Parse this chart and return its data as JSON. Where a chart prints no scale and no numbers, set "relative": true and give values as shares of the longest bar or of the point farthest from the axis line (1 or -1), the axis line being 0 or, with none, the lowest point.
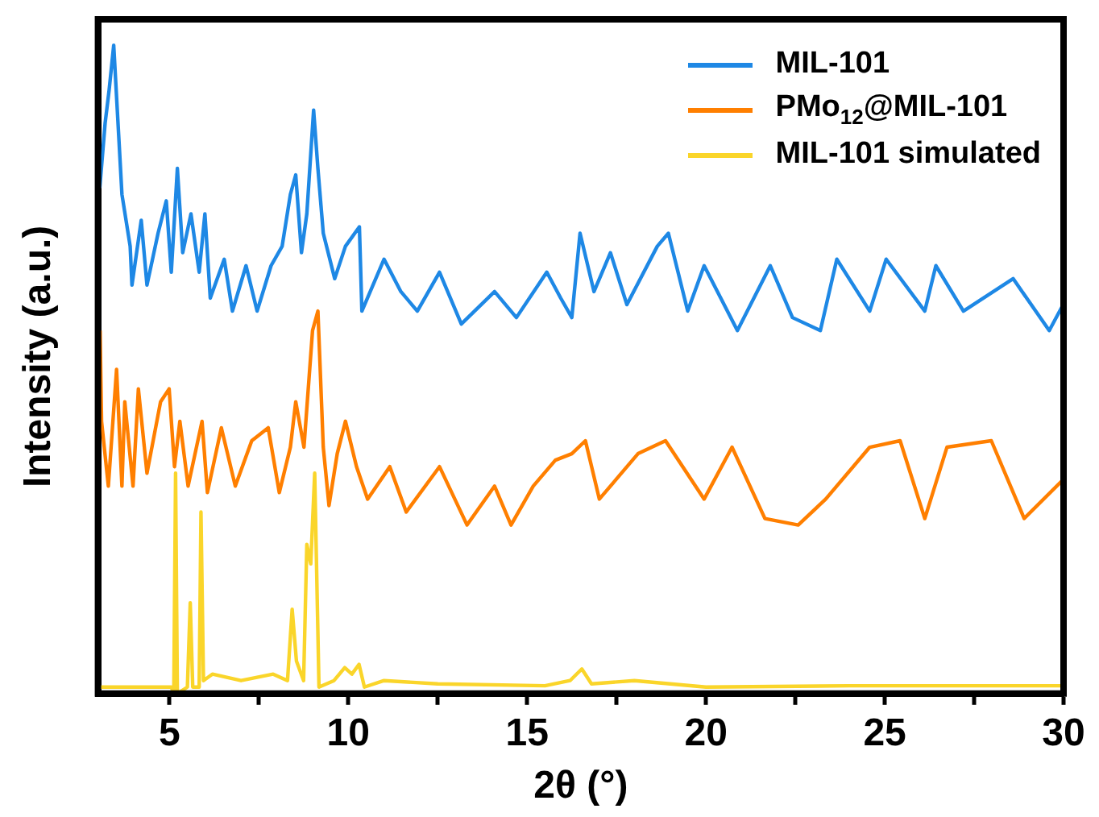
{
  "chart_data": {
    "type": "line",
    "xlabel": "2θ (°)",
    "ylabel": "Intensity (a.u.)",
    "relative": true,
    "xlim": [
      3,
      30
    ],
    "xticks": [
      5,
      {
        "value": 7.5,
        "label": null
      },
      10,
      {
        "value": 12.5,
        "label": null
      },
      15,
      {
        "value": 17.5,
        "label": null
      },
      20,
      {
        "value": 22.5,
        "label": null
      },
      25,
      {
        "value": 27.5,
        "label": null
      },
      30
    ],
    "legend": "top right",
    "grid": false,
    "marker": "none",
    "line_style": "solid",
    "tick_labels": "x",
    "series": [
      {
        "name": "MIL-101",
        "color": "#1e88e5",
        "x": [
          3.05,
          3.2,
          3.31,
          3.44,
          3.56,
          3.67,
          3.9,
          3.95,
          4.21,
          4.37,
          4.68,
          4.91,
          5.05,
          5.22,
          5.37,
          5.6,
          5.83,
          5.99,
          6.14,
          6.53,
          6.76,
          7.14,
          7.45,
          7.84,
          8.15,
          8.38,
          8.53,
          8.69,
          8.84,
          9.03,
          9.15,
          9.3,
          9.62,
          9.92,
          10.31,
          10.38,
          11.0,
          11.47,
          11.93,
          12.55,
          13.16,
          14.09,
          14.7,
          15.55,
          15.94,
          16.25,
          16.48,
          16.87,
          17.33,
          17.79,
          18.64,
          18.95,
          19.49,
          19.95,
          20.88,
          21.8,
          22.42,
          23.2,
          23.66,
          24.58,
          25.04,
          26.12,
          26.43,
          27.2,
          28.59,
          29.6,
          29.99
        ],
        "values": [
          0.78,
          0.88,
          0.93,
          1.0,
          0.88,
          0.77,
          0.69,
          0.63,
          0.73,
          0.63,
          0.71,
          0.76,
          0.65,
          0.81,
          0.68,
          0.74,
          0.65,
          0.74,
          0.61,
          0.67,
          0.59,
          0.66,
          0.59,
          0.66,
          0.69,
          0.77,
          0.8,
          0.68,
          0.74,
          0.9,
          0.81,
          0.71,
          0.64,
          0.69,
          0.72,
          0.59,
          0.67,
          0.62,
          0.59,
          0.65,
          0.57,
          0.62,
          0.58,
          0.65,
          0.61,
          0.58,
          0.71,
          0.62,
          0.68,
          0.6,
          0.69,
          0.71,
          0.59,
          0.66,
          0.56,
          0.66,
          0.58,
          0.56,
          0.67,
          0.59,
          0.67,
          0.59,
          0.66,
          0.59,
          0.64,
          0.56,
          0.6
        ]
      },
      {
        "name": "PMo$_{12}$@MIL-101",
        "color": "#ff7f00",
        "x": [
          3.06,
          3.1,
          3.29,
          3.52,
          3.67,
          3.75,
          3.98,
          4.13,
          4.37,
          4.75,
          4.99,
          5.14,
          5.29,
          5.52,
          5.91,
          6.06,
          6.45,
          6.84,
          7.3,
          7.76,
          8.07,
          8.38,
          8.53,
          8.76,
          9.0,
          9.15,
          9.3,
          9.46,
          9.69,
          9.92,
          10.23,
          10.54,
          11.16,
          11.62,
          12.55,
          13.32,
          14.09,
          14.55,
          15.17,
          15.79,
          16.25,
          16.63,
          17.02,
          18.1,
          18.87,
          19.95,
          20.73,
          21.65,
          22.58,
          23.35,
          24.58,
          25.43,
          26.12,
          26.74,
          27.98,
          28.9,
          29.99
        ],
        "values": [
          0.56,
          0.42,
          0.32,
          0.5,
          0.32,
          0.45,
          0.32,
          0.47,
          0.34,
          0.45,
          0.47,
          0.35,
          0.42,
          0.32,
          0.42,
          0.31,
          0.41,
          0.32,
          0.39,
          0.41,
          0.31,
          0.38,
          0.45,
          0.38,
          0.56,
          0.59,
          0.38,
          0.29,
          0.37,
          0.42,
          0.35,
          0.3,
          0.35,
          0.28,
          0.35,
          0.26,
          0.32,
          0.26,
          0.32,
          0.36,
          0.37,
          0.39,
          0.3,
          0.37,
          0.39,
          0.3,
          0.38,
          0.27,
          0.26,
          0.3,
          0.38,
          0.39,
          0.27,
          0.38,
          0.39,
          0.27,
          0.33
        ]
      },
      {
        "name": "MIL-101 simulated",
        "color": "#fad52a",
        "x": [
          3.0,
          5.05,
          5.12,
          5.17,
          5.22,
          5.5,
          5.58,
          5.65,
          5.83,
          5.88,
          5.95,
          6.2,
          7.0,
          7.9,
          8.3,
          8.43,
          8.55,
          8.75,
          8.84,
          8.95,
          9.06,
          9.18,
          9.6,
          9.9,
          10.1,
          10.3,
          10.45,
          11.0,
          12.5,
          15.5,
          16.2,
          16.53,
          16.8,
          18.0,
          20.0,
          24.0,
          30.0
        ],
        "values": [
          0.01,
          0.01,
          0,
          0.34,
          0,
          0.01,
          0.14,
          0.01,
          0.01,
          0.28,
          0.02,
          0.03,
          0.02,
          0.03,
          0.02,
          0.13,
          0.05,
          0.02,
          0.23,
          0.2,
          0.34,
          0.01,
          0.02,
          0.04,
          0.03,
          0.045,
          0.01,
          0.02,
          0.015,
          0.012,
          0.02,
          0.038,
          0.015,
          0.02,
          0.01,
          0.012,
          0.012
        ]
      }
    ]
  }
}
